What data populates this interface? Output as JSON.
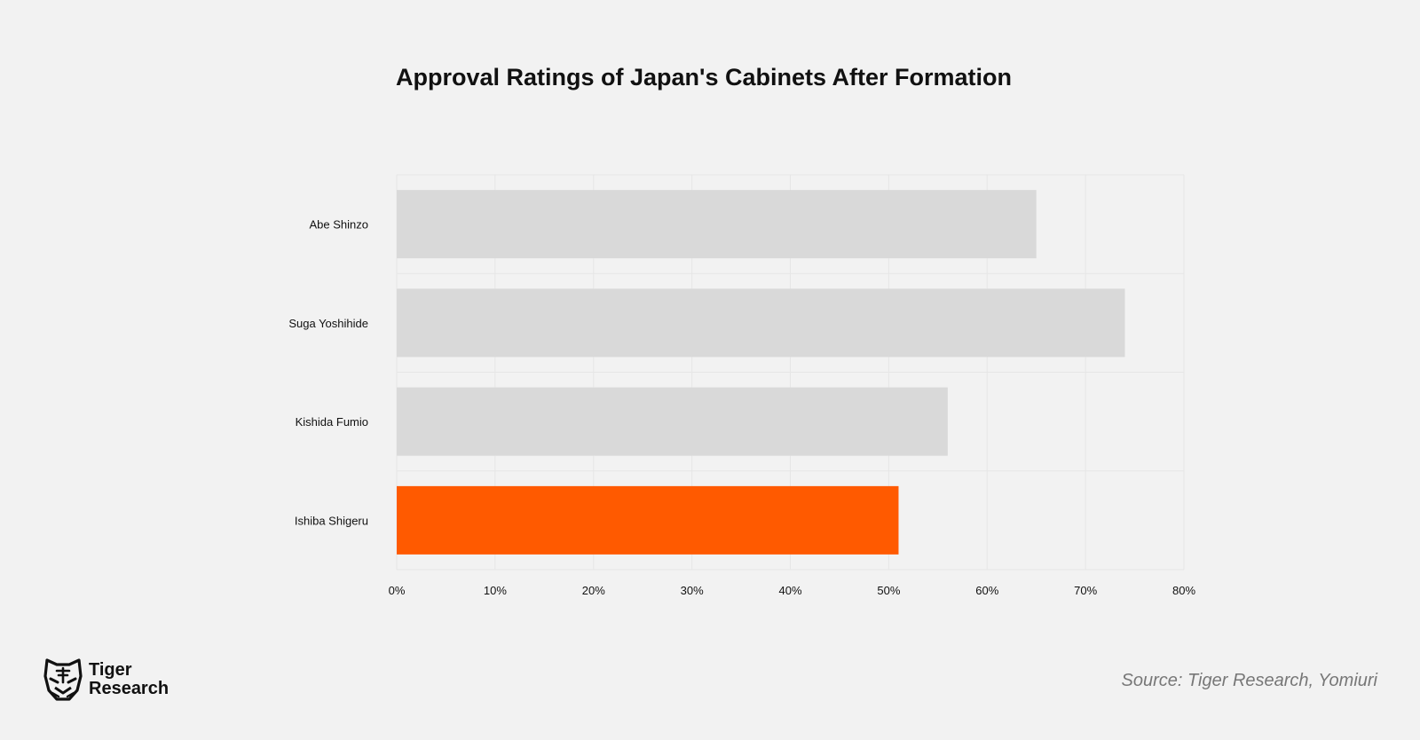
{
  "brand": {
    "name_line1": "Tiger",
    "name_line2": "Research",
    "icon": "tiger-head-icon"
  },
  "source": "Source: Tiger Research, Yomiuri",
  "chart_data": {
    "type": "bar",
    "orientation": "horizontal",
    "title": "Approval Ratings of Japan's Cabinets After Formation",
    "xlabel": "",
    "ylabel": "",
    "categories": [
      "Abe Shinzo",
      "Suga Yoshihide",
      "Kishida Fumio",
      "Ishiba Shigeru"
    ],
    "values": [
      65,
      74,
      56,
      51
    ],
    "value_unit": "%",
    "xlim": [
      0,
      80
    ],
    "ticks": [
      0,
      10,
      20,
      30,
      40,
      50,
      60,
      70,
      80
    ],
    "tick_labels": [
      "0%",
      "10%",
      "20%",
      "30%",
      "40%",
      "50%",
      "60%",
      "70%",
      "80%"
    ],
    "grid": true,
    "legend": "none",
    "colors": {
      "default_bar": "#d9d9d9",
      "highlight_bar": "#ff5a00",
      "highlight_category": "Ishiba Shigeru",
      "grid": "#e6e6e6",
      "background": "#f2f2f2"
    }
  }
}
